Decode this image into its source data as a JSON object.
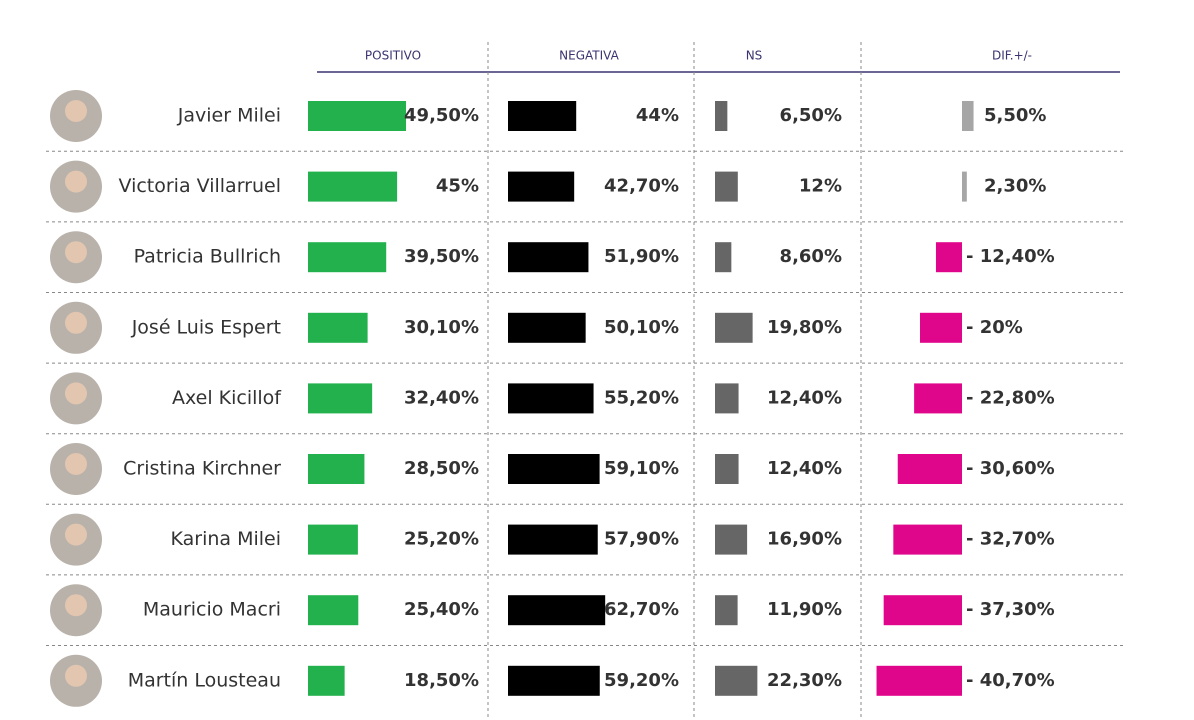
{
  "chart_data": {
    "type": "bar",
    "categories": [
      "Javier Milei",
      "Victoria Villarruel",
      "Patricia Bullrich",
      "José Luis Espert",
      "Axel Kicillof",
      "Cristina Kirchner",
      "Karina Milei",
      "Mauricio Macri",
      "Martín Lousteau"
    ],
    "series": [
      {
        "name": "POSITIVO",
        "color": "#22b14c",
        "values": [
          49.5,
          45,
          39.5,
          30.1,
          32.4,
          28.5,
          25.2,
          25.4,
          18.5
        ],
        "value_labels": [
          "49,50%",
          "45%",
          "39,50%",
          "30,10%",
          "32,40%",
          "28,50%",
          "25,20%",
          "25,40%",
          "18,50%"
        ]
      },
      {
        "name": "NEGATIVA",
        "color": "#000000",
        "values": [
          44,
          42.7,
          51.9,
          50.1,
          55.2,
          59.1,
          57.9,
          62.7,
          59.2
        ],
        "value_labels": [
          "44%",
          "42,70%",
          "51,90%",
          "50,10%",
          "55,20%",
          "59,10%",
          "57,90%",
          "62,70%",
          "59,20%"
        ]
      },
      {
        "name": "NS",
        "color": "#666666",
        "values": [
          6.5,
          12,
          8.6,
          19.8,
          12.4,
          12.4,
          16.9,
          11.9,
          22.3
        ],
        "value_labels": [
          "6,50%",
          "12%",
          "8,60%",
          "19,80%",
          "12,40%",
          "12,40%",
          "16,90%",
          "11,90%",
          "22,30%"
        ]
      },
      {
        "name": "DIF.+/-",
        "color": "#a6a6a6",
        "negative_color": "#e0068c",
        "values": [
          5.5,
          2.3,
          -12.4,
          -20,
          -22.8,
          -30.6,
          -32.7,
          -37.3,
          -40.7
        ],
        "value_labels": [
          "5,50%",
          "2,30%",
          "- 12,40%",
          "- 20%",
          "- 22,80%",
          "- 30,60%",
          "- 32,70%",
          "- 37,30%",
          "- 40,70%"
        ]
      }
    ]
  }
}
